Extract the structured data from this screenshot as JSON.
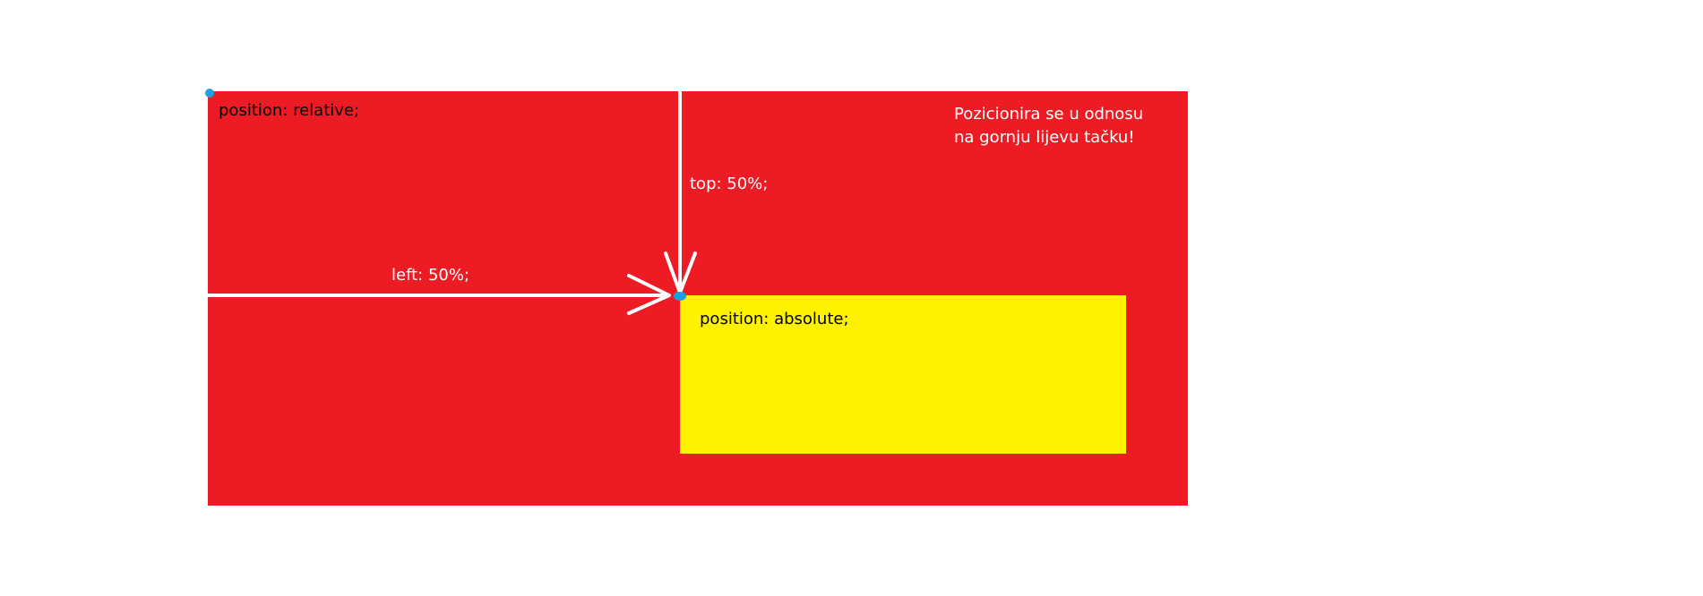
{
  "relative_box": {
    "label": "position: relative;",
    "color": "#ed1c24"
  },
  "absolute_box": {
    "label": "position: absolute;",
    "color": "#fff200"
  },
  "annotations": {
    "top_label": "top: 50%;",
    "left_label": "left: 50%;",
    "note_line1": "Pozicionira se u odnosu",
    "note_line2": "na gornju lijevu tačku!"
  },
  "colors": {
    "arrow": "#ffffff",
    "anchor_dot": "#1ba1e2"
  }
}
